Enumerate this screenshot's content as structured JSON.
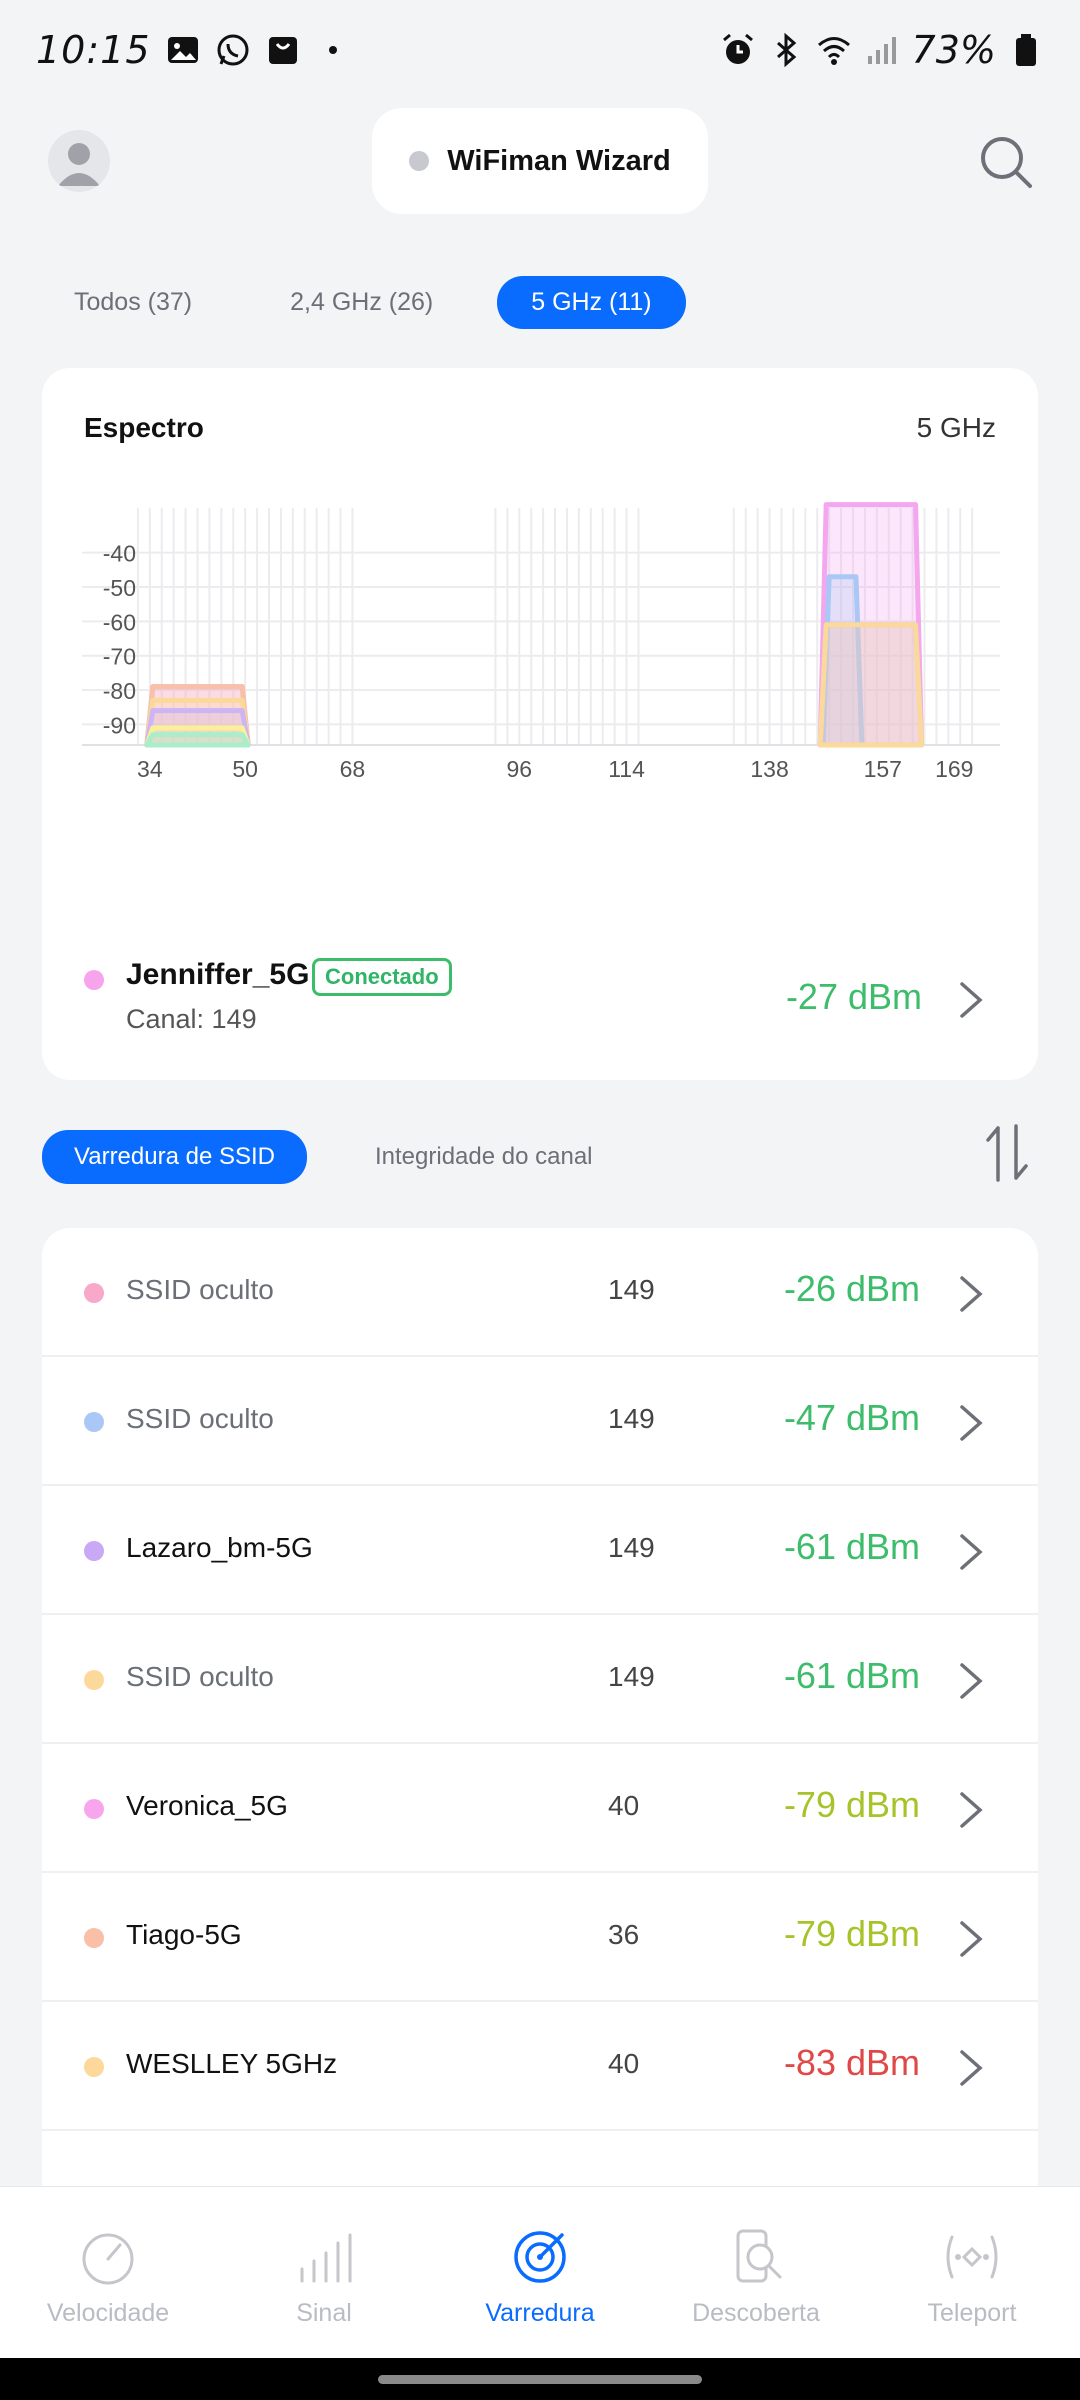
{
  "status_bar": {
    "time": "10:15",
    "battery": "73%"
  },
  "header": {
    "title": "WiFiman Wizard"
  },
  "band_tabs": [
    {
      "label": "Todos (37)",
      "active": false
    },
    {
      "label": "2,4 GHz (26)",
      "active": false
    },
    {
      "label": "5 GHz (11)",
      "active": true
    }
  ],
  "spectrum": {
    "title": "Espectro",
    "band": "5 GHz",
    "chart_data": {
      "type": "area",
      "y_ticks": [
        -40,
        -50,
        -60,
        -70,
        -80,
        -90
      ],
      "x_ticks": [
        34,
        50,
        68,
        96,
        114,
        138,
        157,
        169
      ],
      "ylim": [
        -96,
        -27
      ],
      "grid": true,
      "series": [
        {
          "channel": 149,
          "dbm": -26,
          "color": "#f4a6ef"
        },
        {
          "channel": 149,
          "dbm": -47,
          "color": "#a9c8f5"
        },
        {
          "channel": 149,
          "dbm": -61,
          "color": "#cdb4f5"
        },
        {
          "channel": 149,
          "dbm": -61,
          "color": "#fbd99a"
        },
        {
          "channel": 40,
          "dbm": -79,
          "color": "#f4a6ef"
        },
        {
          "channel": 36,
          "dbm": -79,
          "color": "#f8c0a8"
        },
        {
          "channel": 40,
          "dbm": -83,
          "color": "#fbd99a"
        },
        {
          "channel": 40,
          "dbm": -86,
          "color": "#cdb4f5"
        },
        {
          "channel": 40,
          "dbm": -91,
          "color": "#f9f09a"
        },
        {
          "channel": 40,
          "dbm": -93,
          "color": "#a9eec8"
        }
      ]
    },
    "connected": {
      "name": "Jenniffer_5G",
      "badge": "Conectado",
      "channel_label": "Canal: 149",
      "dbm": "-27 dBm",
      "dot_color": "#f8a4ec"
    }
  },
  "segment_tabs": [
    {
      "label": "Varredura de SSID",
      "active": true
    },
    {
      "label": "Integridade do canal",
      "active": false
    }
  ],
  "networks": [
    {
      "name": "SSID oculto",
      "hidden": true,
      "channel": "149",
      "dbm": "-26 dBm",
      "dot": "#f8a8c8",
      "dbm_color": "#3dbd6b"
    },
    {
      "name": "SSID oculto",
      "hidden": true,
      "channel": "149",
      "dbm": "-47 dBm",
      "dot": "#a9c8f5",
      "dbm_color": "#3dbd6b"
    },
    {
      "name": "Lazaro_bm-5G",
      "hidden": false,
      "channel": "149",
      "dbm": "-61 dBm",
      "dot": "#c9a8f5",
      "dbm_color": "#3dbd6b"
    },
    {
      "name": "SSID oculto",
      "hidden": true,
      "channel": "149",
      "dbm": "-61 dBm",
      "dot": "#fcd99b",
      "dbm_color": "#3dbd6b"
    },
    {
      "name": "Veronica_5G",
      "hidden": false,
      "channel": "40",
      "dbm": "-79 dBm",
      "dot": "#f7a6ee",
      "dbm_color": "#a6c42a"
    },
    {
      "name": "Tiago-5G",
      "hidden": false,
      "channel": "36",
      "dbm": "-79 dBm",
      "dot": "#f9bfa7",
      "dbm_color": "#a6c42a"
    },
    {
      "name": "WESLLEY 5GHz",
      "hidden": false,
      "channel": "40",
      "dbm": "-83 dBm",
      "dot": "#fcd99b",
      "dbm_color": "#e04848"
    }
  ],
  "bottom_nav": [
    {
      "label": "Velocidade",
      "icon": "speedometer-icon",
      "active": false
    },
    {
      "label": "Sinal",
      "icon": "signal-bars-icon",
      "active": false
    },
    {
      "label": "Varredura",
      "icon": "radar-icon",
      "active": true
    },
    {
      "label": "Descoberta",
      "icon": "device-search-icon",
      "active": false
    },
    {
      "label": "Teleport",
      "icon": "teleport-icon",
      "active": false
    }
  ]
}
